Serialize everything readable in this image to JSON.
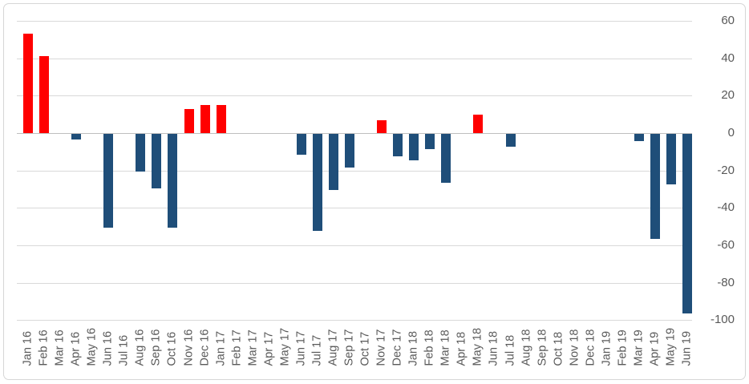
{
  "chart_data": {
    "type": "bar",
    "title": "",
    "xlabel": "",
    "ylabel": "",
    "categories": [
      "Jan 16",
      "Feb 16",
      "Mar 16",
      "Apr 16",
      "May 16",
      "Jun 16",
      "Jul 16",
      "Aug 16",
      "Sep 16",
      "Oct 16",
      "Nov 16",
      "Dec 16",
      "Jan 17",
      "Feb 17",
      "Mar 17",
      "Apr 17",
      "May 17",
      "Jun 17",
      "Jul 17",
      "Aug 17",
      "Sep 17",
      "Oct 17",
      "Nov 17",
      "Dec 17",
      "Jan 18",
      "Feb 18",
      "Mar 18",
      "Apr 18",
      "May 18",
      "Jun 18",
      "Jul 18",
      "Aug 18",
      "Sep 18",
      "Oct 18",
      "Nov 18",
      "Dec 18",
      "Jan 19",
      "Feb 19",
      "Mar 19",
      "Apr 19",
      "May 19",
      "Jun 19"
    ],
    "values": [
      53,
      41,
      0,
      -3,
      0,
      -50,
      0,
      -20,
      -29,
      -50,
      13,
      15,
      15,
      0,
      0,
      0,
      0,
      -11,
      -52,
      -30,
      -18,
      0,
      7,
      -12,
      -14,
      -8,
      -26,
      0,
      10,
      0,
      -7,
      0,
      0,
      0,
      0,
      0,
      0,
      0,
      -4,
      -56,
      -27,
      -96
    ],
    "y_ticks": [
      60,
      40,
      20,
      0,
      -20,
      -40,
      -60,
      -80,
      -100
    ],
    "ylim": [
      -100,
      60
    ],
    "grid": true,
    "legend": "none",
    "bar_colors": {
      "positive": "#ff0000",
      "negative": "#1f4e79"
    },
    "axis_label_color": "#595959",
    "gridline_color": "#d9d9d9"
  }
}
